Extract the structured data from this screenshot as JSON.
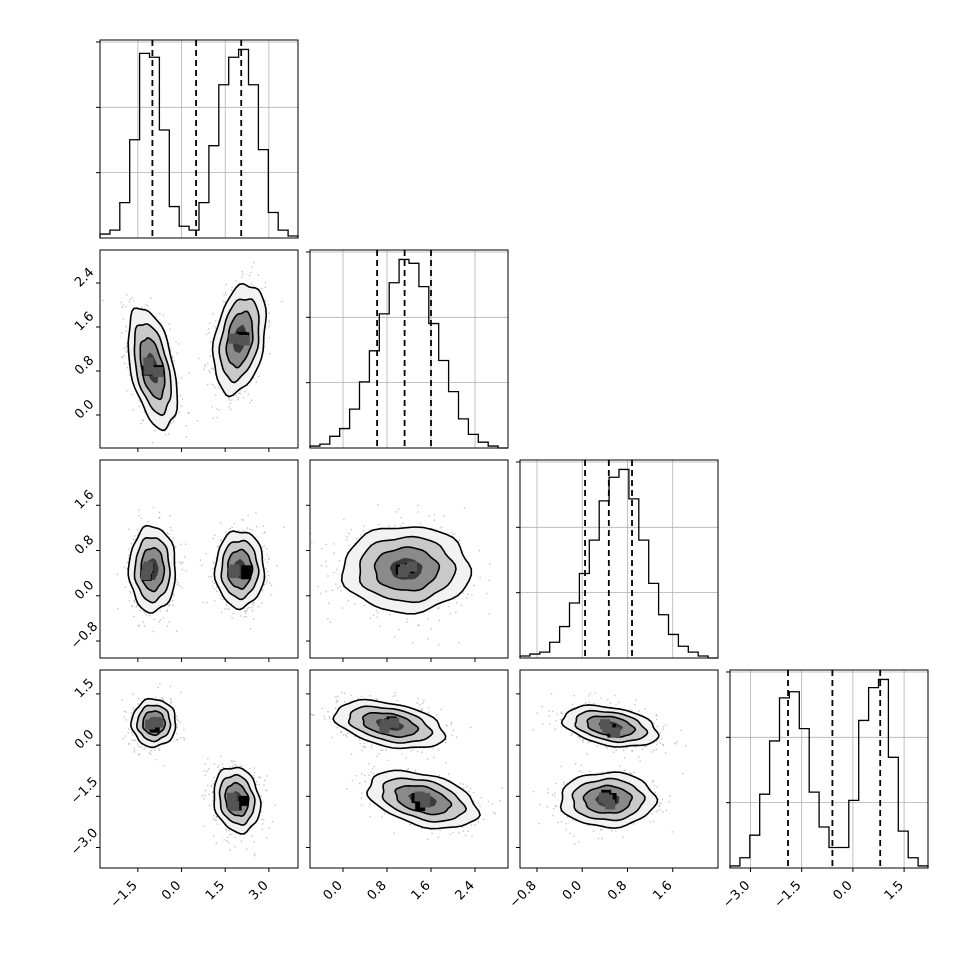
{
  "chart_data": {
    "type": "corner",
    "title": "",
    "parameters": [
      "",
      "",
      "",
      ""
    ],
    "grid": true,
    "colors": {
      "line": "#000000",
      "grid": "#b0b0b0",
      "points": "#7f7f7f"
    },
    "axes": [
      {
        "range": [
          -2.8,
          4.0
        ],
        "ticks": [
          -1.5,
          0.0,
          1.5,
          3.0
        ],
        "tick_labels": [
          "−1.5",
          "0.0",
          "1.5",
          "3.0"
        ]
      },
      {
        "range": [
          -0.6,
          3.0
        ],
        "ticks": [
          0.0,
          0.8,
          1.6,
          2.4
        ],
        "tick_labels": [
          "0.0",
          "0.8",
          "1.6",
          "2.4"
        ]
      },
      {
        "range": [
          -1.1,
          2.4
        ],
        "ticks": [
          -0.8,
          0.0,
          0.8,
          1.6
        ],
        "tick_labels": [
          "−0.8",
          "0.0",
          "0.8",
          "1.6"
        ]
      },
      {
        "range": [
          -3.6,
          2.2
        ],
        "ticks": [
          -3.0,
          -1.5,
          0.0,
          1.5
        ],
        "tick_labels": [
          "−3.0",
          "−1.5",
          "0.0",
          "1.5"
        ]
      }
    ],
    "histograms": [
      {
        "param": 0,
        "bin_edges": [
          -2.8,
          -2.46,
          -2.12,
          -1.78,
          -1.44,
          -1.1,
          -0.76,
          -0.42,
          -0.08,
          0.26,
          0.6,
          0.94,
          1.28,
          1.62,
          1.96,
          2.3,
          2.64,
          2.98,
          3.32,
          3.66,
          4.0
        ],
        "counts": [
          0.02,
          0.04,
          0.18,
          0.5,
          0.94,
          0.92,
          0.55,
          0.16,
          0.06,
          0.04,
          0.18,
          0.47,
          0.78,
          0.92,
          0.96,
          0.78,
          0.45,
          0.13,
          0.04,
          0.01
        ],
        "quantiles": [
          -1.0,
          0.5,
          2.05
        ]
      },
      {
        "param": 1,
        "bin_edges": [
          -0.6,
          -0.42,
          -0.24,
          -0.06,
          0.12,
          0.3,
          0.48,
          0.66,
          0.84,
          1.02,
          1.2,
          1.38,
          1.56,
          1.74,
          1.92,
          2.1,
          2.28,
          2.46,
          2.64,
          2.82,
          3.0
        ],
        "counts": [
          0.01,
          0.02,
          0.06,
          0.1,
          0.2,
          0.34,
          0.5,
          0.69,
          0.85,
          0.97,
          0.95,
          0.83,
          0.64,
          0.45,
          0.29,
          0.15,
          0.07,
          0.03,
          0.01,
          0.0
        ],
        "quantiles": [
          0.62,
          1.12,
          1.6
        ]
      },
      {
        "param": 2,
        "bin_edges": [
          -1.1,
          -0.925,
          -0.75,
          -0.575,
          -0.4,
          -0.225,
          -0.05,
          0.125,
          0.3,
          0.475,
          0.65,
          0.825,
          1.0,
          1.175,
          1.35,
          1.525,
          1.7,
          1.875,
          2.05,
          2.225,
          2.4
        ],
        "counts": [
          0.01,
          0.02,
          0.03,
          0.08,
          0.16,
          0.28,
          0.43,
          0.6,
          0.8,
          0.92,
          0.96,
          0.81,
          0.6,
          0.38,
          0.22,
          0.12,
          0.06,
          0.03,
          0.01,
          0.0
        ],
        "quantiles": [
          0.05,
          0.47,
          0.88
        ]
      },
      {
        "param": 3,
        "bin_edges": [
          -3.6,
          -3.31,
          -3.02,
          -2.73,
          -2.44,
          -2.15,
          -1.86,
          -1.57,
          -1.28,
          -0.99,
          -0.7,
          -0.41,
          -0.12,
          0.17,
          0.46,
          0.75,
          1.04,
          1.33,
          1.62,
          1.91,
          2.2
        ],
        "counts": [
          0.01,
          0.05,
          0.16,
          0.36,
          0.62,
          0.83,
          0.86,
          0.68,
          0.37,
          0.2,
          0.1,
          0.1,
          0.33,
          0.72,
          0.88,
          0.92,
          0.54,
          0.18,
          0.05,
          0.01
        ],
        "quantiles": [
          -1.9,
          -0.6,
          0.8
        ]
      }
    ],
    "scatter_panels": [
      {
        "x_param": 0,
        "y_param": 1,
        "clusters": [
          {
            "center": [
              -1.0,
              0.85
            ],
            "sd": [
              0.42,
              0.55
            ],
            "rho": -0.45
          },
          {
            "center": [
              2.0,
              1.38
            ],
            "sd": [
              0.45,
              0.5
            ],
            "rho": 0.3
          }
        ]
      },
      {
        "x_param": 0,
        "y_param": 2,
        "clusters": [
          {
            "center": [
              -1.0,
              0.47
            ],
            "sd": [
              0.4,
              0.38
            ],
            "rho": 0.0
          },
          {
            "center": [
              2.0,
              0.47
            ],
            "sd": [
              0.42,
              0.34
            ],
            "rho": 0.0
          }
        ]
      },
      {
        "x_param": 1,
        "y_param": 2,
        "clusters": [
          {
            "center": [
              1.15,
              0.47
            ],
            "sd": [
              0.58,
              0.38
            ],
            "rho": 0.0
          }
        ]
      },
      {
        "x_param": 0,
        "y_param": 3,
        "clusters": [
          {
            "center": [
              -0.95,
              0.65
            ],
            "sd": [
              0.38,
              0.35
            ],
            "rho": 0.0
          },
          {
            "center": [
              1.9,
              -1.6
            ],
            "sd": [
              0.4,
              0.48
            ],
            "rho": -0.15
          }
        ]
      },
      {
        "x_param": 1,
        "y_param": 3,
        "clusters": [
          {
            "center": [
              0.85,
              0.6
            ],
            "sd": [
              0.5,
              0.35
            ],
            "rho": -0.4
          },
          {
            "center": [
              1.45,
              -1.6
            ],
            "sd": [
              0.5,
              0.42
            ],
            "rho": -0.4
          }
        ]
      },
      {
        "x_param": 2,
        "y_param": 3,
        "clusters": [
          {
            "center": [
              0.5,
              0.55
            ],
            "sd": [
              0.42,
              0.3
            ],
            "rho": -0.35
          },
          {
            "center": [
              0.45,
              -1.6
            ],
            "sd": [
              0.42,
              0.4
            ],
            "rho": 0.0
          }
        ]
      }
    ]
  }
}
